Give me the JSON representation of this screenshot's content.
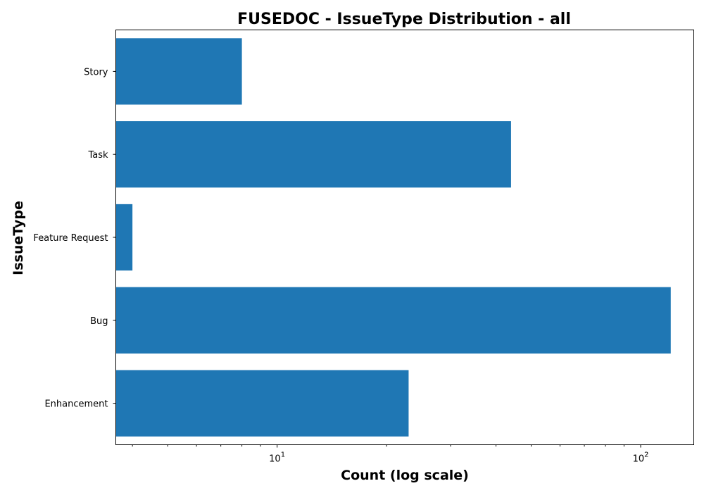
{
  "chart_data": {
    "type": "bar",
    "orientation": "horizontal",
    "title": "FUSEDOC - IssueType Distribution - all",
    "xlabel": "Count (log scale)",
    "ylabel": "IssueType",
    "x_scale": "log",
    "xlim": [
      3.6,
      140
    ],
    "categories": [
      "Story",
      "Task",
      "Feature Request",
      "Bug",
      "Enhancement"
    ],
    "values": [
      8,
      44,
      4,
      121,
      23
    ],
    "bar_color": "#1f77b4",
    "x_ticks": [
      {
        "base": "10",
        "exp": "1",
        "value": 10
      },
      {
        "base": "10",
        "exp": "2",
        "value": 100
      }
    ],
    "grid": false,
    "legend": "none"
  }
}
